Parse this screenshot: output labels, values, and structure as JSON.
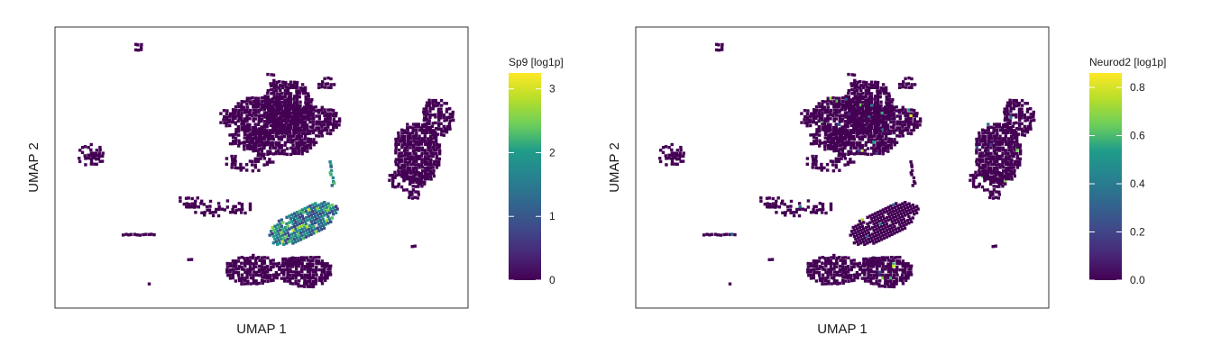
{
  "chart_data": [
    {
      "type": "heatmap",
      "subtype": "umap-hexbin-feature-plot",
      "xlabel": "UMAP 1",
      "ylabel": "UMAP 2",
      "legend_title": "Sp9 [log1p]",
      "colorbar_range": [
        0,
        3.25
      ],
      "colorbar_ticks": [
        "0",
        "1",
        "2",
        "3"
      ],
      "colorbar_tick_values": [
        0,
        1,
        2,
        3
      ],
      "colormap": "viridis",
      "grid": false,
      "highlight_cluster": "center",
      "highlight_range": [
        0.6,
        3.2
      ]
    },
    {
      "type": "heatmap",
      "subtype": "umap-hexbin-feature-plot",
      "xlabel": "UMAP 1",
      "ylabel": "UMAP 2",
      "legend_title": "Neurod2 [log1p]",
      "colorbar_range": [
        0,
        0.86
      ],
      "colorbar_ticks": [
        "0.0",
        "0.2",
        "0.4",
        "0.6",
        "0.8"
      ],
      "colorbar_tick_values": [
        0,
        0.2,
        0.4,
        0.6,
        0.8
      ],
      "colormap": "viridis",
      "grid": false,
      "highlight_cluster": "sparse",
      "highlight_range": [
        0.1,
        0.8
      ]
    }
  ],
  "colors": {
    "viridis": [
      "#440154",
      "#482777",
      "#3f4a8a",
      "#31678e",
      "#26838f",
      "#1f9d8a",
      "#6cce5a",
      "#b6de2b",
      "#fee825"
    ],
    "low_value": "#440154",
    "frame": "#333333"
  }
}
